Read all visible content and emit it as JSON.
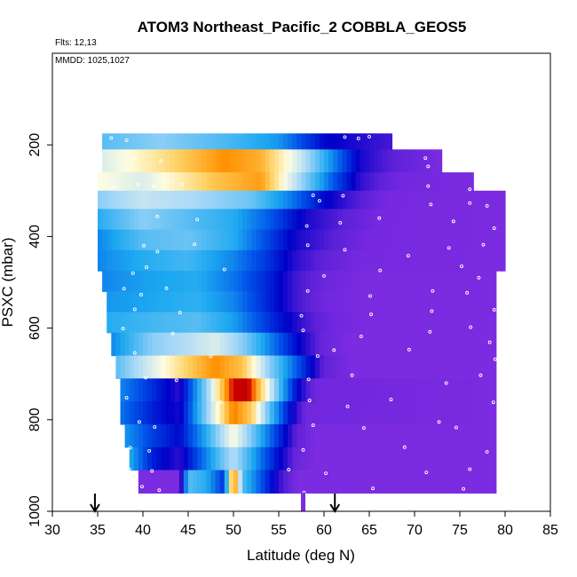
{
  "chart_data": {
    "type": "heatmap",
    "title": "ATOM3 Northeast_Pacific_2 COBBLA_GEOS5",
    "annotations": [
      "Flts: 12,13",
      "MMDD: 1025,1027"
    ],
    "xlabel": "Latitude (deg N)",
    "ylabel": "PSXC (mbar)",
    "xlim": [
      30,
      85
    ],
    "ylim": [
      1000,
      0
    ],
    "xticks": [
      30,
      35,
      40,
      45,
      50,
      55,
      60,
      65,
      70,
      75,
      80,
      85
    ],
    "yticks": [
      200,
      400,
      600,
      800,
      1000
    ],
    "colors": {
      "low": "#7b2be0",
      "mid_low": "#0000c8",
      "mid": "#1ca8f0",
      "mid_high": "#fffde0",
      "high": "#ff9000",
      "max": "#d00000",
      "points": "#ffffff",
      "arrows": "#000000"
    },
    "arrow_markers": [
      34.7,
      61.2
    ],
    "surface_bar_latitude": 57.7,
    "pressure_bands": [
      {
        "p_top": 175,
        "p_bot": 210,
        "lat_min": 35.5,
        "lat_max": 67.5,
        "stops": [
          [
            35.5,
            0.4
          ],
          [
            42,
            0.45
          ],
          [
            50,
            0.38
          ],
          [
            55,
            0.32
          ],
          [
            60,
            0.15
          ],
          [
            65,
            0.1
          ],
          [
            67.5,
            0.08
          ]
        ]
      },
      {
        "p_top": 210,
        "p_bot": 260,
        "lat_min": 35.5,
        "lat_max": 73.0,
        "stops": [
          [
            35.5,
            0.55
          ],
          [
            43,
            0.68
          ],
          [
            49,
            0.8
          ],
          [
            53,
            0.75
          ],
          [
            57,
            0.55
          ],
          [
            61,
            0.3
          ],
          [
            64,
            0.12
          ],
          [
            68,
            0.05
          ],
          [
            73,
            0.0
          ]
        ]
      },
      {
        "p_top": 260,
        "p_bot": 300,
        "lat_min": 35.0,
        "lat_max": 76.5,
        "stops": [
          [
            35,
            0.6
          ],
          [
            40,
            0.55
          ],
          [
            48,
            0.72
          ],
          [
            53,
            0.78
          ],
          [
            57,
            0.5
          ],
          [
            61,
            0.25
          ],
          [
            64,
            0.1
          ],
          [
            68,
            0.02
          ],
          [
            76.5,
            0.0
          ]
        ]
      },
      {
        "p_top": 300,
        "p_bot": 340,
        "lat_min": 35.0,
        "lat_max": 80.0,
        "stops": [
          [
            35,
            0.45
          ],
          [
            40,
            0.52
          ],
          [
            46,
            0.48
          ],
          [
            52,
            0.42
          ],
          [
            56,
            0.3
          ],
          [
            60,
            0.15
          ],
          [
            63,
            0.08
          ],
          [
            67,
            0.01
          ],
          [
            80,
            0.0
          ]
        ]
      },
      {
        "p_top": 340,
        "p_bot": 385,
        "lat_min": 35.0,
        "lat_max": 80.0,
        "stops": [
          [
            35,
            0.35
          ],
          [
            40,
            0.45
          ],
          [
            45,
            0.4
          ],
          [
            50,
            0.35
          ],
          [
            54,
            0.25
          ],
          [
            58,
            0.12
          ],
          [
            62,
            0.06
          ],
          [
            66,
            0.01
          ],
          [
            80,
            0.0
          ]
        ]
      },
      {
        "p_top": 385,
        "p_bot": 430,
        "lat_min": 35.0,
        "lat_max": 80.0,
        "stops": [
          [
            35,
            0.3
          ],
          [
            40,
            0.4
          ],
          [
            45,
            0.42
          ],
          [
            50,
            0.35
          ],
          [
            54,
            0.22
          ],
          [
            57,
            0.12
          ],
          [
            61,
            0.06
          ],
          [
            65,
            0.01
          ],
          [
            80,
            0.0
          ]
        ]
      },
      {
        "p_top": 430,
        "p_bot": 475,
        "lat_min": 35.0,
        "lat_max": 80.0,
        "stops": [
          [
            35,
            0.3
          ],
          [
            40,
            0.35
          ],
          [
            45,
            0.38
          ],
          [
            50,
            0.3
          ],
          [
            54,
            0.2
          ],
          [
            57,
            0.1
          ],
          [
            60,
            0.05
          ],
          [
            64,
            0.01
          ],
          [
            80,
            0.0
          ]
        ]
      },
      {
        "p_top": 475,
        "p_bot": 520,
        "lat_min": 35.5,
        "lat_max": 79.0,
        "stops": [
          [
            35.5,
            0.3
          ],
          [
            40,
            0.33
          ],
          [
            46,
            0.35
          ],
          [
            50,
            0.28
          ],
          [
            54,
            0.18
          ],
          [
            57,
            0.08
          ],
          [
            60,
            0.03
          ],
          [
            64,
            0.0
          ],
          [
            79,
            0.0
          ]
        ]
      },
      {
        "p_top": 520,
        "p_bot": 565,
        "lat_min": 36.0,
        "lat_max": 79.0,
        "stops": [
          [
            36,
            0.32
          ],
          [
            41,
            0.34
          ],
          [
            46,
            0.36
          ],
          [
            50,
            0.3
          ],
          [
            54,
            0.18
          ],
          [
            57,
            0.08
          ],
          [
            60,
            0.02
          ],
          [
            64,
            0.0
          ],
          [
            79,
            0.0
          ]
        ]
      },
      {
        "p_top": 565,
        "p_bot": 610,
        "lat_min": 36.0,
        "lat_max": 79.0,
        "stops": [
          [
            36,
            0.35
          ],
          [
            41,
            0.38
          ],
          [
            46,
            0.4
          ],
          [
            50,
            0.33
          ],
          [
            54,
            0.2
          ],
          [
            58,
            0.08
          ],
          [
            61,
            0.02
          ],
          [
            64,
            0.0
          ],
          [
            79,
            0.0
          ]
        ]
      },
      {
        "p_top": 610,
        "p_bot": 660,
        "lat_min": 36.5,
        "lat_max": 79.0,
        "stops": [
          [
            36.5,
            0.3
          ],
          [
            41,
            0.45
          ],
          [
            45,
            0.5
          ],
          [
            48,
            0.55
          ],
          [
            51,
            0.45
          ],
          [
            54,
            0.3
          ],
          [
            57,
            0.15
          ],
          [
            60,
            0.03
          ],
          [
            63,
            0.0
          ],
          [
            79,
            0.0
          ]
        ]
      },
      {
        "p_top": 660,
        "p_bot": 710,
        "lat_min": 37.0,
        "lat_max": 79.0,
        "stops": [
          [
            37,
            0.4
          ],
          [
            41,
            0.55
          ],
          [
            45,
            0.7
          ],
          [
            48,
            0.8
          ],
          [
            51,
            0.72
          ],
          [
            54,
            0.45
          ],
          [
            57,
            0.25
          ],
          [
            60,
            0.05
          ],
          [
            63,
            0.0
          ],
          [
            79,
            0.0
          ]
        ]
      },
      {
        "p_top": 710,
        "p_bot": 760,
        "lat_min": 37.5,
        "lat_max": 79.0,
        "stops": [
          [
            37.5,
            0.3
          ],
          [
            41,
            0.2
          ],
          [
            44,
            0.1
          ],
          [
            47,
            0.45
          ],
          [
            50,
            0.92
          ],
          [
            51.5,
            0.95
          ],
          [
            53,
            0.7
          ],
          [
            55,
            0.4
          ],
          [
            57,
            0.15
          ],
          [
            59,
            0.02
          ],
          [
            79,
            0.0
          ]
        ]
      },
      {
        "p_top": 760,
        "p_bot": 810,
        "lat_min": 37.5,
        "lat_max": 79.0,
        "stops": [
          [
            37.5,
            0.28
          ],
          [
            41,
            0.18
          ],
          [
            44,
            0.12
          ],
          [
            47,
            0.45
          ],
          [
            50,
            0.82
          ],
          [
            52,
            0.7
          ],
          [
            54,
            0.4
          ],
          [
            56,
            0.18
          ],
          [
            58,
            0.02
          ],
          [
            79,
            0.0
          ]
        ]
      },
      {
        "p_top": 810,
        "p_bot": 860,
        "lat_min": 38.0,
        "lat_max": 79.0,
        "stops": [
          [
            38,
            0.32
          ],
          [
            41,
            0.22
          ],
          [
            44,
            0.15
          ],
          [
            47,
            0.35
          ],
          [
            50,
            0.6
          ],
          [
            53,
            0.35
          ],
          [
            55,
            0.2
          ],
          [
            57,
            0.05
          ],
          [
            59,
            0.0
          ],
          [
            79,
            0.0
          ]
        ]
      },
      {
        "p_top": 860,
        "p_bot": 910,
        "lat_min": 38.5,
        "lat_max": 79.0,
        "stops": [
          [
            38.5,
            0.35
          ],
          [
            41,
            0.18
          ],
          [
            44,
            0.1
          ],
          [
            47,
            0.3
          ],
          [
            50,
            0.5
          ],
          [
            53,
            0.28
          ],
          [
            55,
            0.15
          ],
          [
            57,
            0.03
          ],
          [
            59,
            0.0
          ],
          [
            79,
            0.0
          ]
        ]
      },
      {
        "p_top": 910,
        "p_bot": 960,
        "lat_min": 39.5,
        "lat_max": 79.0,
        "stops": [
          [
            39.5,
            0.0
          ],
          [
            44,
            0.0
          ],
          [
            45,
            0.4
          ],
          [
            47,
            0.35
          ],
          [
            49,
            0.2
          ],
          [
            50,
            0.85
          ],
          [
            51,
            0.4
          ],
          [
            53,
            0.25
          ],
          [
            55,
            0.1
          ],
          [
            57,
            0.0
          ],
          [
            79,
            0.0
          ]
        ]
      }
    ],
    "sample_points": [
      [
        36.5,
        185
      ],
      [
        38.2,
        190
      ],
      [
        62.3,
        183
      ],
      [
        63.8,
        186
      ],
      [
        65.0,
        182
      ],
      [
        39.1,
        229
      ],
      [
        42.0,
        235
      ],
      [
        71.2,
        229
      ],
      [
        71.5,
        247
      ],
      [
        39.5,
        287
      ],
      [
        41.2,
        290
      ],
      [
        44.3,
        287
      ],
      [
        36.8,
        292
      ],
      [
        71.5,
        290
      ],
      [
        76.1,
        297
      ],
      [
        58.8,
        310
      ],
      [
        59.5,
        322
      ],
      [
        62.1,
        311
      ],
      [
        71.8,
        330
      ],
      [
        76.1,
        327
      ],
      [
        78.0,
        333
      ],
      [
        41.6,
        356
      ],
      [
        46.0,
        363
      ],
      [
        58.1,
        377
      ],
      [
        61.8,
        370
      ],
      [
        66.1,
        360
      ],
      [
        78.8,
        382
      ],
      [
        74.3,
        367
      ],
      [
        40.1,
        420
      ],
      [
        41.6,
        433
      ],
      [
        45.7,
        417
      ],
      [
        58.2,
        419
      ],
      [
        62.3,
        429
      ],
      [
        69.3,
        442
      ],
      [
        73.8,
        425
      ],
      [
        77.6,
        418
      ],
      [
        38.9,
        480
      ],
      [
        40.4,
        467
      ],
      [
        49.0,
        472
      ],
      [
        60.0,
        486
      ],
      [
        66.2,
        474
      ],
      [
        75.2,
        465
      ],
      [
        77.1,
        490
      ],
      [
        37.9,
        514
      ],
      [
        39.8,
        527
      ],
      [
        42.6,
        513
      ],
      [
        58.2,
        519
      ],
      [
        65.1,
        530
      ],
      [
        72.0,
        519
      ],
      [
        75.8,
        523
      ],
      [
        39.1,
        559
      ],
      [
        44.1,
        566
      ],
      [
        57.5,
        573
      ],
      [
        65.2,
        570
      ],
      [
        71.9,
        563
      ],
      [
        78.8,
        560
      ],
      [
        37.8,
        601
      ],
      [
        43.3,
        612
      ],
      [
        57.7,
        605
      ],
      [
        64.1,
        618
      ],
      [
        71.7,
        608
      ],
      [
        76.2,
        598
      ],
      [
        78.3,
        631
      ],
      [
        39.1,
        654
      ],
      [
        47.5,
        662
      ],
      [
        59.3,
        661
      ],
      [
        61.1,
        648
      ],
      [
        69.4,
        647
      ],
      [
        78.9,
        668
      ],
      [
        40.3,
        708
      ],
      [
        43.7,
        714
      ],
      [
        58.3,
        712
      ],
      [
        63.1,
        703
      ],
      [
        73.5,
        720
      ],
      [
        77.3,
        703
      ],
      [
        38.2,
        752
      ],
      [
        48.6,
        762
      ],
      [
        58.4,
        758
      ],
      [
        62.6,
        771
      ],
      [
        67.4,
        756
      ],
      [
        78.7,
        762
      ],
      [
        39.6,
        805
      ],
      [
        41.3,
        816
      ],
      [
        58.8,
        812
      ],
      [
        64.4,
        818
      ],
      [
        72.7,
        805
      ],
      [
        74.6,
        817
      ],
      [
        38.6,
        861
      ],
      [
        40.7,
        868
      ],
      [
        57.7,
        866
      ],
      [
        68.9,
        860
      ],
      [
        78.0,
        870
      ],
      [
        38.5,
        908
      ],
      [
        41.0,
        912
      ],
      [
        56.1,
        909
      ],
      [
        60.2,
        917
      ],
      [
        71.3,
        915
      ],
      [
        76.1,
        908
      ],
      [
        39.9,
        946
      ],
      [
        41.8,
        954
      ],
      [
        57.8,
        959
      ],
      [
        65.4,
        950
      ],
      [
        75.4,
        951
      ]
    ]
  }
}
